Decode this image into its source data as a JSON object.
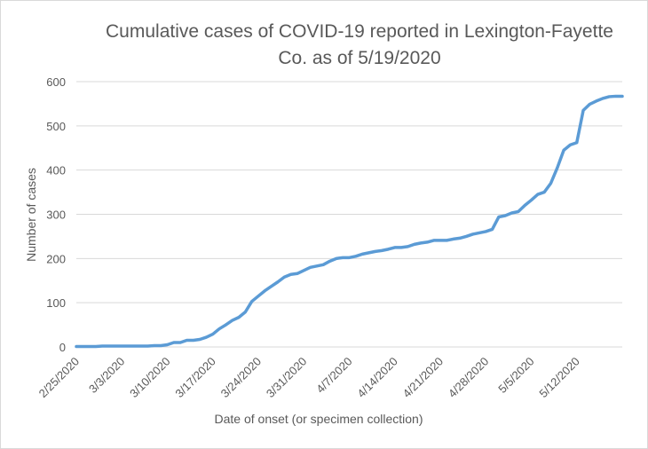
{
  "chart_data": {
    "type": "line",
    "title_lines": [
      "Cumulative cases of COVID-19 reported in Lexington-Fayette",
      "Co.  as of 5/19/2020"
    ],
    "xlabel": "Date of onset (or specimen collection)",
    "ylabel": "Number of cases",
    "ylim": [
      0,
      600
    ],
    "y_ticks": [
      0,
      100,
      200,
      300,
      400,
      500,
      600
    ],
    "x_start": "2/25/2020",
    "x_end": "5/19/2020",
    "x_tick_labels": [
      "2/25/2020",
      "3/3/2020",
      "3/10/2020",
      "3/17/2020",
      "3/24/2020",
      "3/31/2020",
      "4/7/2020",
      "4/14/2020",
      "4/21/2020",
      "4/28/2020",
      "5/5/2020",
      "5/12/2020"
    ],
    "grid": true,
    "series": [
      {
        "color": "#5b9bd5",
        "points": [
          [
            "2/25/2020",
            1
          ],
          [
            "2/26/2020",
            1
          ],
          [
            "2/27/2020",
            1
          ],
          [
            "2/28/2020",
            1
          ],
          [
            "2/29/2020",
            2
          ],
          [
            "3/1/2020",
            2
          ],
          [
            "3/2/2020",
            2
          ],
          [
            "3/3/2020",
            2
          ],
          [
            "3/4/2020",
            2
          ],
          [
            "3/5/2020",
            2
          ],
          [
            "3/6/2020",
            2
          ],
          [
            "3/7/2020",
            2
          ],
          [
            "3/8/2020",
            3
          ],
          [
            "3/9/2020",
            3
          ],
          [
            "3/10/2020",
            5
          ],
          [
            "3/11/2020",
            10
          ],
          [
            "3/12/2020",
            10
          ],
          [
            "3/13/2020",
            15
          ],
          [
            "3/14/2020",
            15
          ],
          [
            "3/15/2020",
            17
          ],
          [
            "3/16/2020",
            22
          ],
          [
            "3/17/2020",
            29
          ],
          [
            "3/18/2020",
            41
          ],
          [
            "3/19/2020",
            50
          ],
          [
            "3/20/2020",
            60
          ],
          [
            "3/21/2020",
            67
          ],
          [
            "3/22/2020",
            79
          ],
          [
            "3/23/2020",
            103
          ],
          [
            "3/24/2020",
            115
          ],
          [
            "3/25/2020",
            127
          ],
          [
            "3/26/2020",
            137
          ],
          [
            "3/27/2020",
            147
          ],
          [
            "3/28/2020",
            158
          ],
          [
            "3/29/2020",
            164
          ],
          [
            "3/30/2020",
            166
          ],
          [
            "3/31/2020",
            173
          ],
          [
            "4/1/2020",
            180
          ],
          [
            "4/2/2020",
            183
          ],
          [
            "4/3/2020",
            186
          ],
          [
            "4/4/2020",
            194
          ],
          [
            "4/5/2020",
            200
          ],
          [
            "4/6/2020",
            202
          ],
          [
            "4/7/2020",
            202
          ],
          [
            "4/8/2020",
            205
          ],
          [
            "4/9/2020",
            210
          ],
          [
            "4/10/2020",
            213
          ],
          [
            "4/11/2020",
            216
          ],
          [
            "4/12/2020",
            218
          ],
          [
            "4/13/2020",
            221
          ],
          [
            "4/14/2020",
            225
          ],
          [
            "4/15/2020",
            225
          ],
          [
            "4/16/2020",
            227
          ],
          [
            "4/17/2020",
            232
          ],
          [
            "4/18/2020",
            235
          ],
          [
            "4/19/2020",
            237
          ],
          [
            "4/20/2020",
            241
          ],
          [
            "4/21/2020",
            241
          ],
          [
            "4/22/2020",
            241
          ],
          [
            "4/23/2020",
            244
          ],
          [
            "4/24/2020",
            246
          ],
          [
            "4/25/2020",
            250
          ],
          [
            "4/26/2020",
            255
          ],
          [
            "4/27/2020",
            258
          ],
          [
            "4/28/2020",
            261
          ],
          [
            "4/29/2020",
            266
          ],
          [
            "4/30/2020",
            294
          ],
          [
            "5/1/2020",
            297
          ],
          [
            "5/2/2020",
            303
          ],
          [
            "5/3/2020",
            306
          ],
          [
            "5/4/2020",
            320
          ],
          [
            "5/5/2020",
            332
          ],
          [
            "5/6/2020",
            345
          ],
          [
            "5/7/2020",
            350
          ],
          [
            "5/8/2020",
            370
          ],
          [
            "5/9/2020",
            405
          ],
          [
            "5/10/2020",
            445
          ],
          [
            "5/11/2020",
            457
          ],
          [
            "5/12/2020",
            462
          ],
          [
            "5/13/2020",
            535
          ],
          [
            "5/14/2020",
            549
          ],
          [
            "5/15/2020",
            556
          ],
          [
            "5/16/2020",
            562
          ],
          [
            "5/17/2020",
            566
          ],
          [
            "5/18/2020",
            567
          ],
          [
            "5/19/2020",
            567
          ]
        ]
      }
    ]
  }
}
